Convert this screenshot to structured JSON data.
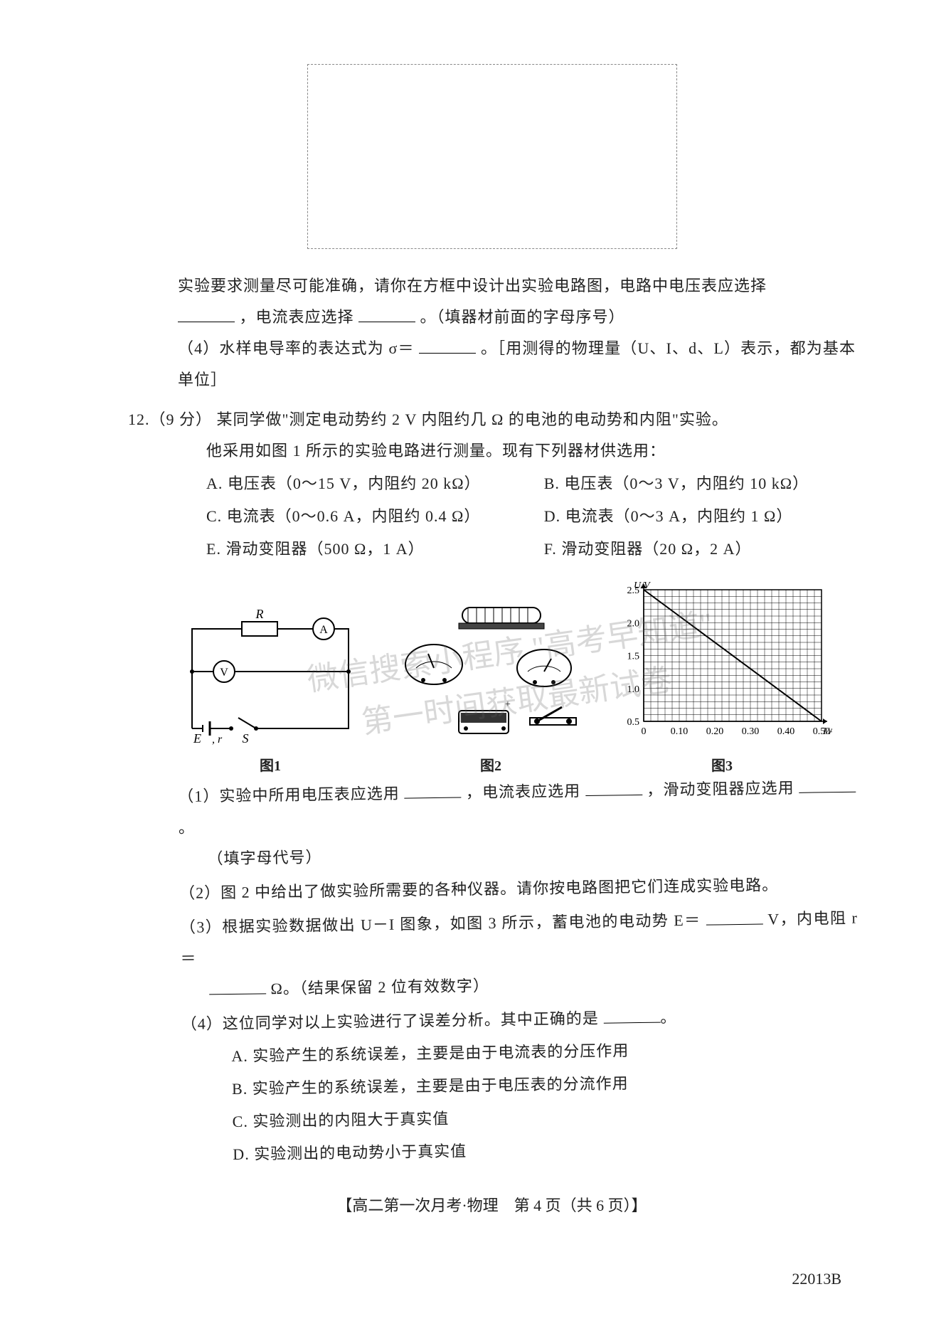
{
  "pre_text": {
    "line1": "实验要求测量尽可能准确，请你在方框中设计出实验电路图，电路中电压表应选择",
    "line2_a": "，电流表应选择",
    "line2_b": "。（填器材前面的字母序号）",
    "q4_a": "（4）水样电导率的表达式为 σ＝",
    "q4_b": "。［用测得的物理量（U、I、d、L）表示，都为基本单位］"
  },
  "q12": {
    "num": "12.（9 分）",
    "stem": "某同学做\"测定电动势约 2 V 内阻约几 Ω 的电池的电动势和内阻\"实验。",
    "line2": "他采用如图 1 所示的实验电路进行测量。现有下列器材供选用：",
    "opts": {
      "A": "A. 电压表（0～15 V，内阻约 20 kΩ）",
      "B": "B. 电压表（0～3 V，内阻约 10 kΩ）",
      "C": "C. 电流表（0～0.6 A，内阻约 0.4 Ω）",
      "D": "D. 电流表（0～3 A，内阻约 1 Ω）",
      "E": "E. 滑动变阻器（500 Ω，1 A）",
      "F": "F. 滑动变阻器（20 Ω，2 A）"
    }
  },
  "figs": {
    "fig1": "图1",
    "fig2": "图2",
    "fig3": "图3",
    "circuit_labels": {
      "R": "R",
      "A": "A",
      "V": "V",
      "E": "E",
      "r": "r",
      "S": "S"
    }
  },
  "graph": {
    "type": "line",
    "xlabel": "I/A",
    "ylabel": "U/V",
    "xlim": [
      0,
      0.5
    ],
    "ylim": [
      0.5,
      2.5
    ],
    "xticks": [
      "0",
      "0.10",
      "0.20",
      "0.30",
      "0.40",
      "0.50"
    ],
    "yticks": [
      "0.5",
      "1.0",
      "1.5",
      "2.0",
      "2.5"
    ],
    "xtick_positions": [
      0,
      0.1,
      0.2,
      0.3,
      0.4,
      0.5
    ],
    "ytick_positions": [
      0.5,
      1.0,
      1.5,
      2.0,
      2.5
    ],
    "minor_x_step": 0.02,
    "minor_y_step": 0.1,
    "line_points": [
      [
        0,
        2.5
      ],
      [
        0.5,
        0.5
      ]
    ],
    "line_color": "#000000",
    "grid_color": "#000000",
    "background_color": "#ffffff",
    "label_fontsize": 14
  },
  "watermark": {
    "line1": "微信搜索小程序 \"高考早知道\"",
    "line2": "第一时间获取最新试卷"
  },
  "subq": {
    "s1a": "（1）实验中所用电压表应选用",
    "s1b": "，电流表应选用",
    "s1c": "，滑动变阻器应选用",
    "s1d": "。",
    "s1e": "（填字母代号）",
    "s2": "（2）图 2 中给出了做实验所需要的各种仪器。请你按电路图把它们连成实验电路。",
    "s3a": "（3）根据实验数据做出 U－I 图象，如图 3 所示，蓄电池的电动势 E＝",
    "s3b": "V，内电阻 r＝",
    "s3c": "Ω。（结果保留 2 位有效数字）",
    "s4": "（4）这位同学对以上实验进行了误差分析。其中正确的是",
    "s4opts": {
      "A": "A. 实验产生的系统误差，主要是由于电流表的分压作用",
      "B": "B. 实验产生的系统误差，主要是由于电压表的分流作用",
      "C": "C. 实验测出的内阻大于真实值",
      "D": "D. 实验测出的电动势小于真实值"
    }
  },
  "footer": {
    "text": "【高二第一次月考·物理　第 4 页（共 6 页）】",
    "code": "22013B"
  }
}
